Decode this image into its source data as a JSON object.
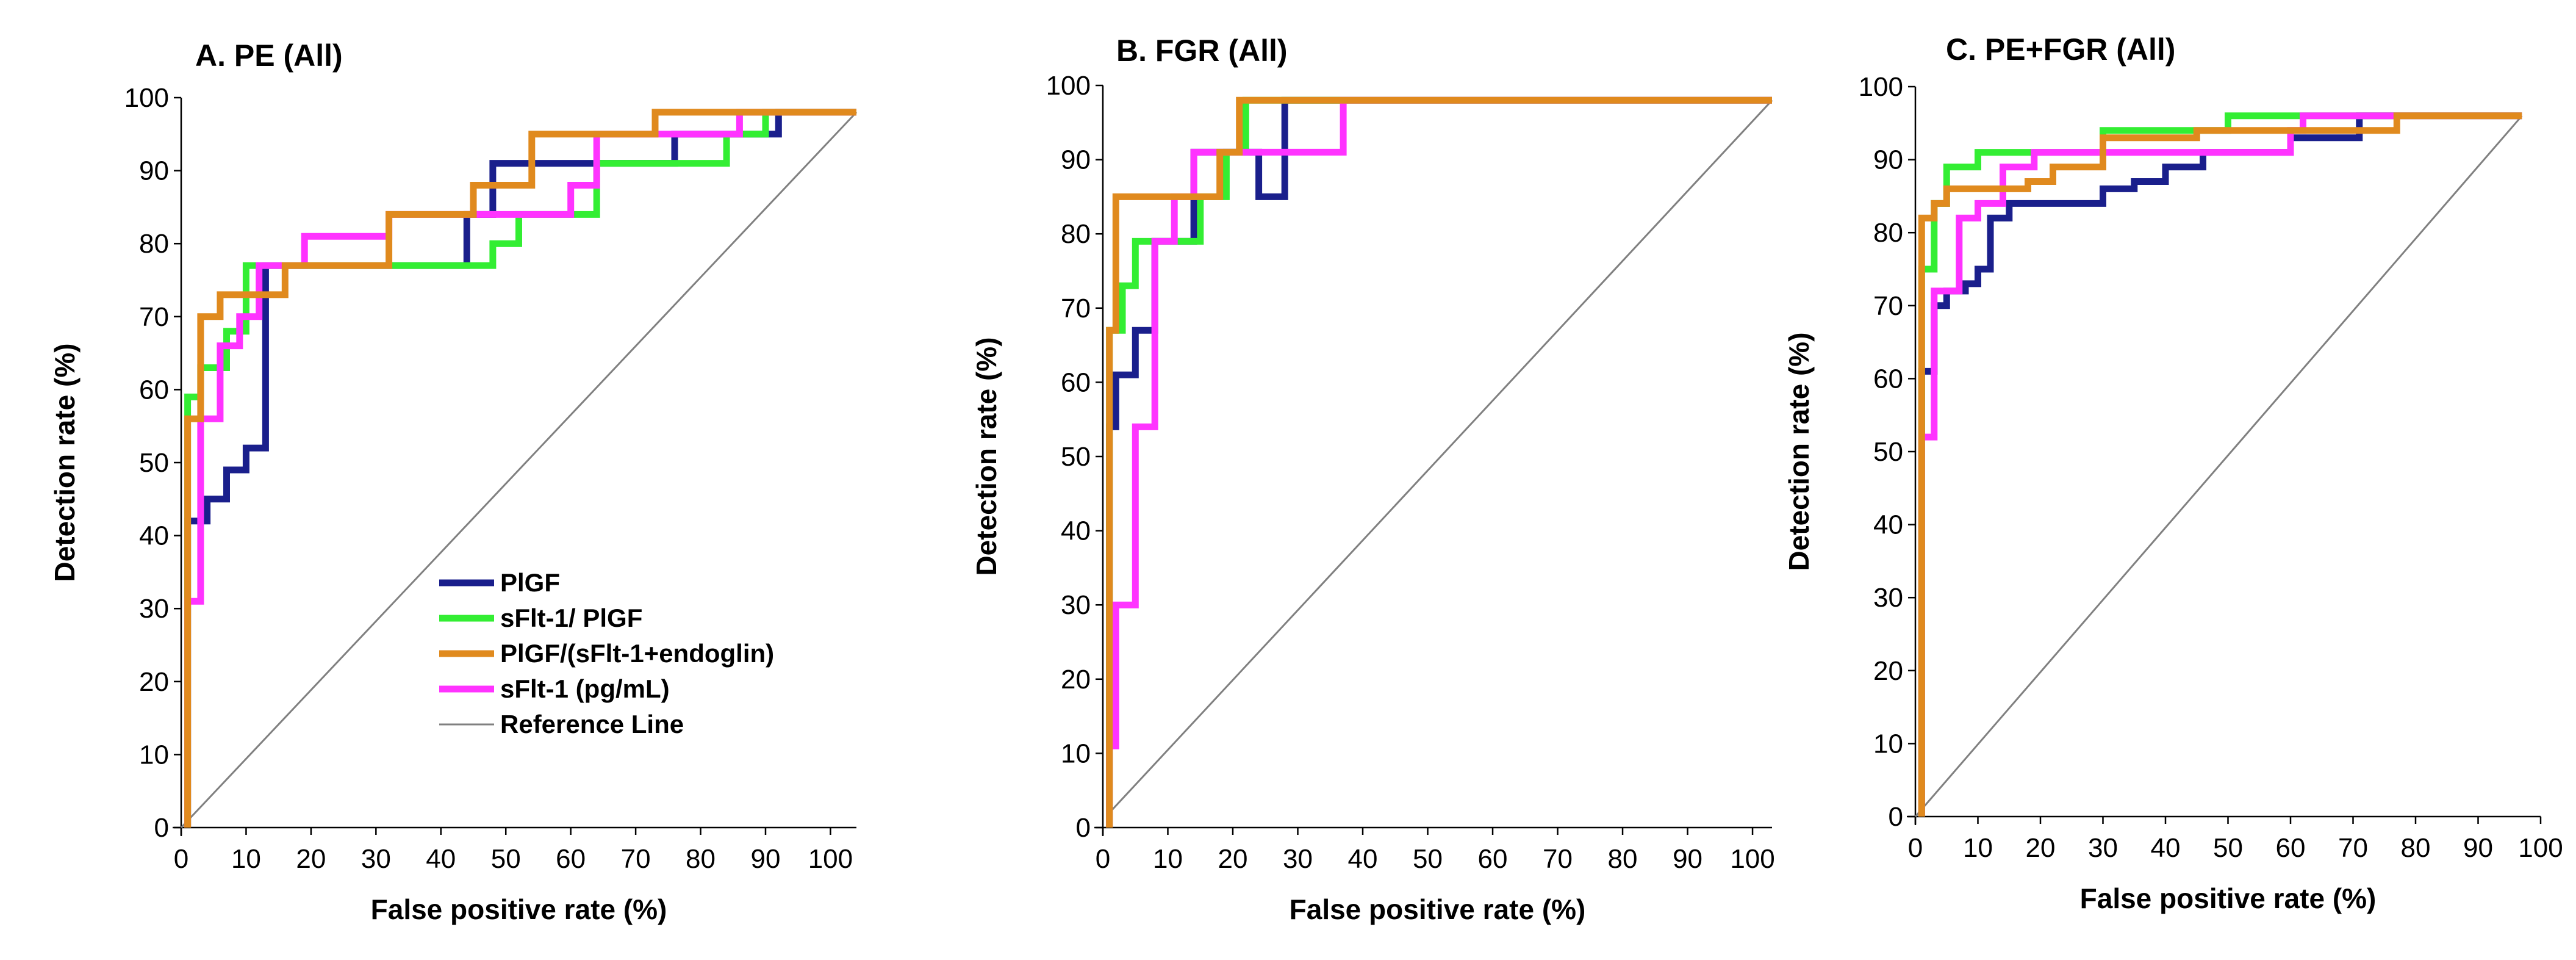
{
  "colors": {
    "PlGF": "#1a1f8c",
    "sFlt-1/ PlGF": "#33ee33",
    "PlGF/(sFlt-1+endoglin)": "#e08a1e",
    "sFlt-1 (pg/mL)": "#ff33ff",
    "Reference Line": "#808080"
  },
  "legend": {
    "placement": "panel-A-bottom-right",
    "entries": [
      "PlGF",
      "sFlt-1/ PlGF",
      "PlGF/(sFlt-1+endoglin)",
      "sFlt-1 (pg/mL)",
      "Reference Line"
    ]
  },
  "chart_data": [
    {
      "type": "line",
      "title": "A. PE (All)",
      "xlabel": "False positive rate (%)",
      "ylabel": "Detection rate (%)",
      "xlim": [
        0,
        104
      ],
      "ylim": [
        0,
        100
      ],
      "xticks": [
        0,
        10,
        20,
        30,
        40,
        50,
        60,
        70,
        80,
        90,
        100
      ],
      "yticks": [
        0,
        10,
        20,
        30,
        40,
        50,
        60,
        70,
        80,
        90,
        100
      ],
      "grid": false,
      "series": [
        {
          "name": "Reference Line",
          "x": [
            0,
            104
          ],
          "y": [
            0,
            98
          ]
        },
        {
          "name": "PlGF",
          "x": [
            1,
            1,
            4,
            4,
            7,
            7,
            10,
            10,
            13,
            13,
            44,
            44,
            48,
            48,
            76,
            76,
            92,
            92,
            104
          ],
          "y": [
            0,
            42,
            42,
            45,
            45,
            49,
            49,
            52,
            52,
            77,
            77,
            84,
            84,
            91,
            91,
            95,
            95,
            98,
            98
          ]
        },
        {
          "name": "sFlt-1/ PlGF",
          "x": [
            1,
            1,
            3,
            3,
            7,
            7,
            10,
            10,
            48,
            48,
            52,
            52,
            64,
            64,
            84,
            84,
            90,
            90,
            104
          ],
          "y": [
            0,
            59,
            59,
            63,
            63,
            68,
            68,
            77,
            77,
            80,
            80,
            84,
            84,
            91,
            91,
            95,
            95,
            98,
            98
          ]
        },
        {
          "name": "PlGF/(sFlt-1+endoglin)",
          "x": [
            1,
            1,
            3,
            3,
            6,
            6,
            11,
            11,
            16,
            16,
            32,
            32,
            45,
            45,
            54,
            54,
            73,
            73,
            104
          ],
          "y": [
            0,
            56,
            56,
            70,
            70,
            73,
            73,
            73,
            73,
            77,
            77,
            84,
            84,
            88,
            88,
            95,
            95,
            98,
            98
          ]
        },
        {
          "name": "sFlt-1 (pg/mL)",
          "x": [
            1,
            1,
            3,
            3,
            6,
            6,
            9,
            9,
            12,
            12,
            19,
            19,
            32,
            32,
            60,
            60,
            64,
            64,
            86,
            86,
            104
          ],
          "y": [
            0,
            31,
            31,
            56,
            56,
            66,
            66,
            70,
            70,
            77,
            77,
            81,
            81,
            84,
            84,
            88,
            88,
            95,
            95,
            98,
            98
          ]
        }
      ]
    },
    {
      "type": "line",
      "title": "B. FGR (All)",
      "xlabel": "False positive rate (%)",
      "ylabel": "Detection rate (%)",
      "xlim": [
        0,
        103
      ],
      "ylim": [
        0,
        100
      ],
      "xticks": [
        0,
        10,
        20,
        30,
        40,
        50,
        60,
        70,
        80,
        90,
        100
      ],
      "yticks": [
        0,
        10,
        20,
        30,
        40,
        50,
        60,
        70,
        80,
        90,
        100
      ],
      "grid": false,
      "series": [
        {
          "name": "Reference Line",
          "x": [
            1,
            103
          ],
          "y": [
            2,
            98
          ]
        },
        {
          "name": "PlGF",
          "x": [
            1,
            1,
            2,
            2,
            5,
            5,
            8,
            8,
            14,
            14,
            24,
            24,
            28,
            28,
            103
          ],
          "y": [
            0,
            54,
            54,
            61,
            61,
            67,
            67,
            79,
            79,
            91,
            91,
            85,
            85,
            98,
            98
          ]
        },
        {
          "name": "sFlt-1/ PlGF",
          "x": [
            1,
            1,
            3,
            3,
            5,
            5,
            11,
            11,
            15,
            15,
            19,
            19,
            22,
            22,
            103
          ],
          "y": [
            0,
            67,
            67,
            73,
            73,
            79,
            79,
            79,
            79,
            85,
            85,
            91,
            91,
            98,
            98
          ]
        },
        {
          "name": "PlGF/(sFlt-1+endoglin)",
          "x": [
            1,
            1,
            2,
            2,
            14,
            14,
            18,
            18,
            21,
            21,
            103
          ],
          "y": [
            0,
            67,
            67,
            85,
            85,
            85,
            85,
            91,
            91,
            98,
            98
          ]
        },
        {
          "name": "sFlt-1 (pg/mL)",
          "x": [
            1,
            1,
            2,
            2,
            5,
            5,
            8,
            8,
            11,
            11,
            14,
            14,
            37,
            37,
            103
          ],
          "y": [
            0,
            11,
            11,
            30,
            30,
            54,
            54,
            79,
            79,
            85,
            85,
            91,
            91,
            98,
            98
          ]
        }
      ]
    },
    {
      "type": "line",
      "title": "C. PE+FGR (All)",
      "xlabel": "False positive rate (%)",
      "ylabel": "Detection rate (%)",
      "xlim": [
        0,
        100
      ],
      "ylim": [
        0,
        100
      ],
      "xticks": [
        0,
        10,
        20,
        30,
        40,
        50,
        60,
        70,
        80,
        90,
        100
      ],
      "yticks": [
        0,
        10,
        20,
        30,
        40,
        50,
        60,
        70,
        80,
        90,
        100
      ],
      "grid": false,
      "series": [
        {
          "name": "Reference Line",
          "x": [
            0,
            97
          ],
          "y": [
            0,
            96
          ]
        },
        {
          "name": "PlGF",
          "x": [
            1,
            1,
            3,
            3,
            5,
            5,
            8,
            8,
            10,
            10,
            12,
            12,
            15,
            15,
            30,
            30,
            35,
            35,
            40,
            40,
            46,
            46,
            60,
            60,
            71,
            71,
            97
          ],
          "y": [
            0,
            61,
            61,
            70,
            70,
            72,
            72,
            73,
            73,
            75,
            75,
            82,
            82,
            84,
            84,
            86,
            86,
            87,
            87,
            89,
            89,
            91,
            91,
            93,
            93,
            96,
            96
          ]
        },
        {
          "name": "sFlt-1/ PlGF",
          "x": [
            1,
            1,
            3,
            3,
            5,
            5,
            10,
            10,
            30,
            30,
            50,
            50,
            97
          ],
          "y": [
            0,
            75,
            75,
            84,
            84,
            89,
            89,
            91,
            91,
            94,
            94,
            96,
            96
          ]
        },
        {
          "name": "PlGF/(sFlt-1+endoglin)",
          "x": [
            1,
            1,
            3,
            3,
            5,
            5,
            10,
            10,
            18,
            18,
            22,
            22,
            30,
            30,
            45,
            45,
            77,
            77,
            97
          ],
          "y": [
            0,
            82,
            82,
            84,
            84,
            86,
            86,
            86,
            86,
            87,
            87,
            89,
            89,
            93,
            93,
            94,
            94,
            96,
            96
          ]
        },
        {
          "name": "sFlt-1 (pg/mL)",
          "x": [
            1,
            1,
            3,
            3,
            7,
            7,
            10,
            10,
            14,
            14,
            19,
            19,
            30,
            30,
            60,
            60,
            62,
            62,
            97
          ],
          "y": [
            0,
            52,
            52,
            72,
            72,
            82,
            82,
            84,
            84,
            89,
            89,
            91,
            91,
            91,
            91,
            94,
            94,
            96,
            96
          ]
        }
      ]
    }
  ]
}
